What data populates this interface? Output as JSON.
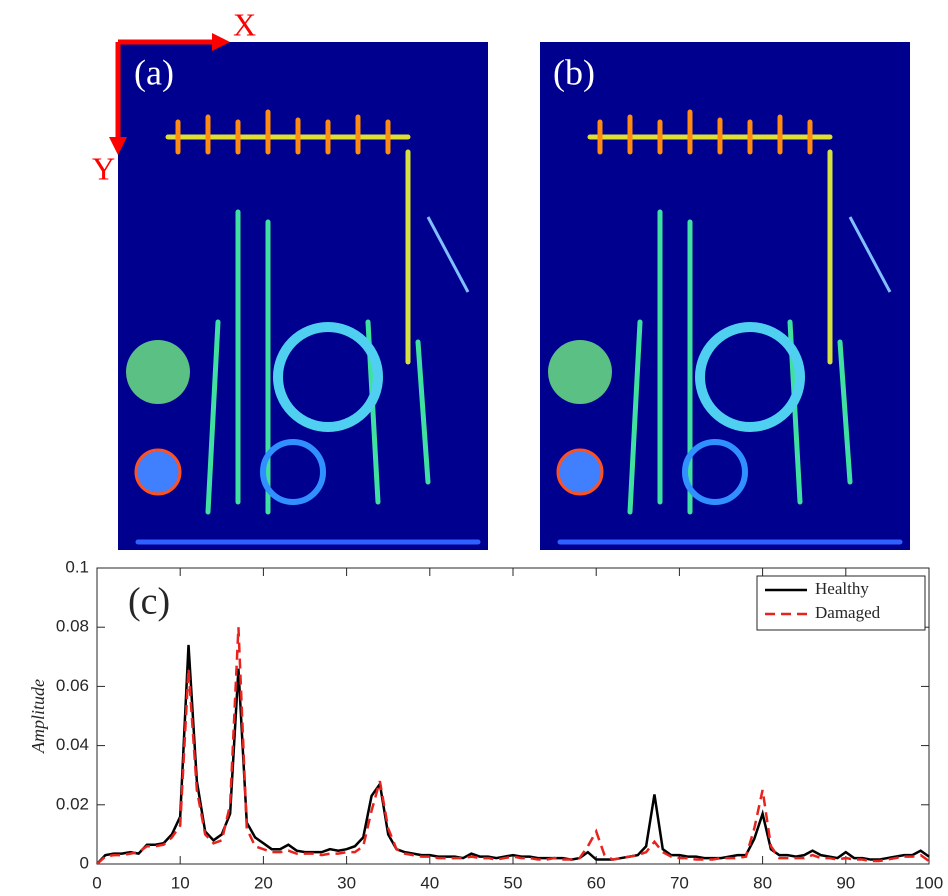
{
  "images": [
    {
      "label": "(a)"
    },
    {
      "label": "(b)"
    }
  ],
  "axis_arrows": {
    "x": "X",
    "y": "Y"
  },
  "chart_data": {
    "type": "line",
    "annotation": "(c)",
    "ylabel": "Amplitude",
    "x": [
      0,
      1,
      2,
      3,
      4,
      5,
      6,
      7,
      8,
      9,
      10,
      11,
      12,
      13,
      14,
      15,
      16,
      17,
      18,
      19,
      20,
      21,
      22,
      23,
      24,
      25,
      26,
      27,
      28,
      29,
      30,
      31,
      32,
      33,
      34,
      35,
      36,
      37,
      38,
      39,
      40,
      41,
      42,
      43,
      44,
      45,
      46,
      47,
      48,
      49,
      50,
      51,
      52,
      53,
      54,
      55,
      56,
      57,
      58,
      59,
      60,
      61,
      62,
      63,
      64,
      65,
      66,
      67,
      68,
      69,
      70,
      71,
      72,
      73,
      74,
      75,
      76,
      77,
      78,
      79,
      80,
      81,
      82,
      83,
      84,
      85,
      86,
      87,
      88,
      89,
      90,
      91,
      92,
      93,
      94,
      95,
      96,
      97,
      98,
      99,
      100
    ],
    "series": [
      {
        "name": "Healthy",
        "color": "#000000",
        "dash": "solid",
        "values": [
          0,
          0.003,
          0.0035,
          0.0035,
          0.004,
          0.0035,
          0.0065,
          0.0065,
          0.007,
          0.01,
          0.016,
          0.074,
          0.028,
          0.011,
          0.008,
          0.01,
          0.017,
          0.066,
          0.014,
          0.009,
          0.007,
          0.005,
          0.005,
          0.0065,
          0.0045,
          0.004,
          0.004,
          0.004,
          0.005,
          0.0045,
          0.005,
          0.006,
          0.009,
          0.023,
          0.027,
          0.01,
          0.005,
          0.004,
          0.0035,
          0.003,
          0.003,
          0.0025,
          0.0025,
          0.0025,
          0.002,
          0.0035,
          0.0025,
          0.0025,
          0.002,
          0.0025,
          0.003,
          0.0025,
          0.0025,
          0.002,
          0.002,
          0.002,
          0.002,
          0.0015,
          0.002,
          0.004,
          0.0015,
          0.0015,
          0.0015,
          0.002,
          0.0025,
          0.003,
          0.006,
          0.0235,
          0.005,
          0.003,
          0.003,
          0.0025,
          0.0025,
          0.002,
          0.002,
          0.002,
          0.0025,
          0.003,
          0.003,
          0.0085,
          0.017,
          0.005,
          0.003,
          0.003,
          0.0025,
          0.003,
          0.0045,
          0.003,
          0.0025,
          0.002,
          0.004,
          0.002,
          0.002,
          0.0015,
          0.0015,
          0.002,
          0.0025,
          0.003,
          0.003,
          0.0045,
          0.0025
        ]
      },
      {
        "name": "Damaged",
        "color": "#e8231e",
        "dash": "dashed",
        "values": [
          0,
          0.0025,
          0.003,
          0.003,
          0.0035,
          0.004,
          0.006,
          0.006,
          0.0065,
          0.009,
          0.013,
          0.066,
          0.025,
          0.01,
          0.007,
          0.008,
          0.02,
          0.08,
          0.012,
          0.006,
          0.005,
          0.004,
          0.004,
          0.0045,
          0.0035,
          0.0035,
          0.0035,
          0.003,
          0.0035,
          0.0035,
          0.004,
          0.004,
          0.006,
          0.018,
          0.028,
          0.012,
          0.005,
          0.0035,
          0.003,
          0.0025,
          0.0025,
          0.002,
          0.002,
          0.002,
          0.002,
          0.0025,
          0.002,
          0.002,
          0.0015,
          0.002,
          0.0025,
          0.002,
          0.002,
          0.0015,
          0.0015,
          0.002,
          0.0015,
          0.0015,
          0.002,
          0.006,
          0.011,
          0.003,
          0.0015,
          0.002,
          0.0025,
          0.003,
          0.004,
          0.0075,
          0.004,
          0.0025,
          0.002,
          0.002,
          0.0015,
          0.0015,
          0.0015,
          0.002,
          0.002,
          0.002,
          0.0025,
          0.012,
          0.025,
          0.006,
          0.002,
          0.002,
          0.002,
          0.002,
          0.003,
          0.002,
          0.002,
          0.0015,
          0.002,
          0.0015,
          0.0015,
          0.001,
          0.001,
          0.0015,
          0.002,
          0.0025,
          0.0025,
          0.003,
          0.001
        ]
      }
    ],
    "xlim": [
      0,
      100
    ],
    "xticks": [
      0,
      10,
      20,
      30,
      40,
      50,
      60,
      70,
      80,
      90,
      100
    ],
    "ylim": [
      0,
      0.1
    ],
    "yticks": [
      0,
      0.02,
      0.04,
      0.06,
      0.08,
      0.1
    ],
    "legend": "upper right"
  }
}
